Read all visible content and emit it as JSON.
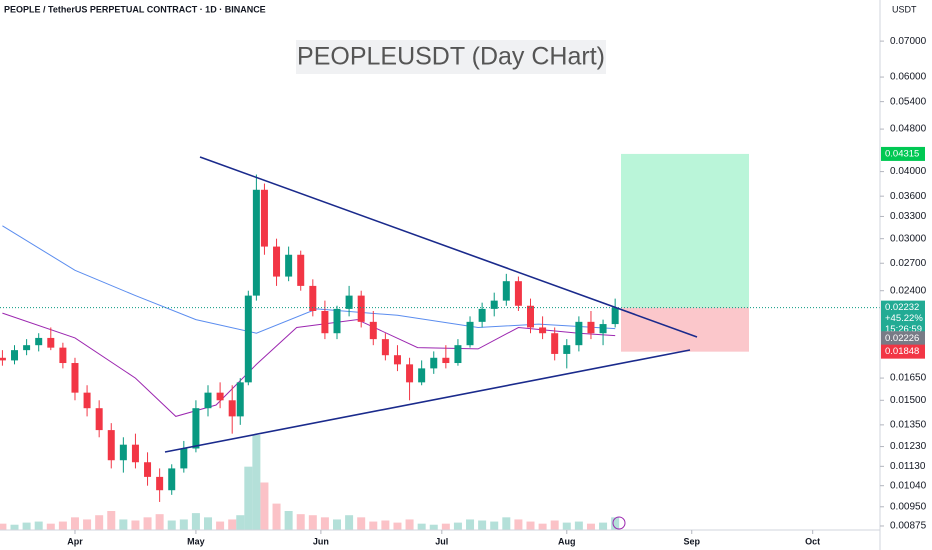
{
  "chart_data": {
    "type": "candlestick",
    "header": "PEOPLE / TetherUS PERPETUAL CONTRACT · 1D · BINANCE",
    "title": "PEOPLEUSDT (Day CHart)",
    "y_unit": "USDT",
    "log_scale": true,
    "grid": false,
    "up_color": "#089981",
    "down_color": "#f23645",
    "xlim": [
      -18.6,
      199.7
    ],
    "ylim": [
      0.0086,
      0.0835
    ],
    "xticks": [
      {
        "value": 0,
        "label": "Apr"
      },
      {
        "value": 30,
        "label": "May"
      },
      {
        "value": 61,
        "label": "Jun"
      },
      {
        "value": 91,
        "label": "Jul"
      },
      {
        "value": 122,
        "label": "Aug"
      },
      {
        "value": 153,
        "label": "Sep"
      },
      {
        "value": 183,
        "label": "Oct"
      }
    ],
    "yticks": [
      {
        "value": 0.07,
        "label": "0.07000"
      },
      {
        "value": 0.06,
        "label": "0.06000"
      },
      {
        "value": 0.054,
        "label": "0.05400"
      },
      {
        "value": 0.048,
        "label": "0.04800"
      },
      {
        "value": 0.04,
        "label": "0.04000"
      },
      {
        "value": 0.036,
        "label": "0.03600"
      },
      {
        "value": 0.033,
        "label": "0.03300"
      },
      {
        "value": 0.03,
        "label": "0.03000"
      },
      {
        "value": 0.027,
        "label": "0.02700"
      },
      {
        "value": 0.024,
        "label": "0.02400"
      },
      {
        "value": 0.0165,
        "label": "0.01650"
      },
      {
        "value": 0.015,
        "label": "0.01500"
      },
      {
        "value": 0.0135,
        "label": "0.01350"
      },
      {
        "value": 0.0123,
        "label": "0.01230"
      },
      {
        "value": 0.0113,
        "label": "0.01130"
      },
      {
        "value": 0.0104,
        "label": "0.01040"
      },
      {
        "value": 0.0095,
        "label": "0.00950"
      },
      {
        "value": 0.00875,
        "label": "0.00875"
      }
    ],
    "x": [
      -18,
      -15,
      -12,
      -9,
      -6,
      -3,
      0,
      3,
      6,
      9,
      12,
      15,
      18,
      21,
      24,
      27,
      30,
      33,
      36,
      39,
      41,
      43,
      45,
      47,
      50,
      53,
      56,
      59,
      62,
      65,
      68,
      71,
      74,
      77,
      80,
      83,
      86,
      89,
      92,
      95,
      98,
      101,
      104,
      107,
      110,
      113,
      116,
      119,
      122,
      125,
      128,
      131,
      134
    ],
    "open": [
      0.018,
      0.0178,
      0.0186,
      0.019,
      0.0196,
      0.0188,
      0.0176,
      0.0155,
      0.0145,
      0.0132,
      0.0116,
      0.0124,
      0.0115,
      0.0108,
      0.0102,
      0.0112,
      0.0122,
      0.0145,
      0.0155,
      0.015,
      0.014,
      0.0162,
      0.0235,
      0.037,
      0.029,
      0.0255,
      0.028,
      0.0245,
      0.022,
      0.02,
      0.0222,
      0.0235,
      0.021,
      0.0195,
      0.0182,
      0.0175,
      0.0162,
      0.0172,
      0.018,
      0.0176,
      0.019,
      0.021,
      0.0222,
      0.023,
      0.025,
      0.0225,
      0.0205,
      0.02,
      0.0183,
      0.019,
      0.021,
      0.02,
      0.0208
    ],
    "high": [
      0.0186,
      0.019,
      0.0195,
      0.02,
      0.0205,
      0.0192,
      0.018,
      0.016,
      0.015,
      0.0136,
      0.0128,
      0.013,
      0.012,
      0.0112,
      0.0114,
      0.0126,
      0.015,
      0.016,
      0.0162,
      0.016,
      0.0165,
      0.024,
      0.0395,
      0.038,
      0.03,
      0.029,
      0.0285,
      0.0252,
      0.023,
      0.0225,
      0.0245,
      0.024,
      0.022,
      0.02,
      0.019,
      0.018,
      0.0178,
      0.0185,
      0.019,
      0.0195,
      0.0215,
      0.0228,
      0.0238,
      0.0258,
      0.0255,
      0.0232,
      0.0215,
      0.0205,
      0.0195,
      0.0215,
      0.022,
      0.0212,
      0.0232
    ],
    "low": [
      0.0174,
      0.0175,
      0.0182,
      0.0185,
      0.0186,
      0.0172,
      0.015,
      0.014,
      0.0128,
      0.0112,
      0.011,
      0.0112,
      0.0104,
      0.0097,
      0.01,
      0.011,
      0.012,
      0.014,
      0.0145,
      0.013,
      0.0135,
      0.016,
      0.023,
      0.028,
      0.0245,
      0.025,
      0.024,
      0.0215,
      0.0195,
      0.0195,
      0.0215,
      0.0205,
      0.019,
      0.0178,
      0.017,
      0.015,
      0.016,
      0.0168,
      0.0172,
      0.0174,
      0.0188,
      0.0205,
      0.0215,
      0.0225,
      0.022,
      0.02,
      0.0195,
      0.0178,
      0.0172,
      0.0185,
      0.0195,
      0.019,
      0.0205
    ],
    "close": [
      0.0178,
      0.0186,
      0.019,
      0.0196,
      0.0188,
      0.0176,
      0.0155,
      0.0145,
      0.0132,
      0.0116,
      0.0124,
      0.0115,
      0.0108,
      0.0102,
      0.0112,
      0.0122,
      0.0145,
      0.0155,
      0.015,
      0.014,
      0.0162,
      0.0235,
      0.037,
      0.029,
      0.0255,
      0.028,
      0.0245,
      0.022,
      0.02,
      0.0222,
      0.0235,
      0.021,
      0.0195,
      0.0182,
      0.0175,
      0.0162,
      0.0172,
      0.018,
      0.0176,
      0.019,
      0.021,
      0.0222,
      0.023,
      0.025,
      0.0225,
      0.0205,
      0.02,
      0.0183,
      0.019,
      0.021,
      0.02,
      0.0208,
      0.02232
    ],
    "volume": [
      6,
      5,
      7,
      8,
      6,
      8,
      12,
      10,
      14,
      18,
      10,
      9,
      12,
      15,
      9,
      10,
      16,
      12,
      8,
      10,
      14,
      60,
      90,
      45,
      25,
      18,
      15,
      14,
      12,
      10,
      14,
      12,
      8,
      9,
      7,
      10,
      6,
      5,
      6,
      7,
      10,
      9,
      8,
      12,
      10,
      8,
      6,
      9,
      7,
      8,
      6,
      7,
      12
    ],
    "moving_averages": [
      {
        "color": "#5b8def",
        "x": [
          -18,
          0,
          15,
          30,
          45,
          60,
          80,
          100,
          115,
          134
        ],
        "values": [
          0.0317,
          0.0262,
          0.0235,
          0.0212,
          0.02,
          0.0222,
          0.0216,
          0.0205,
          0.0208,
          0.0204
        ]
      },
      {
        "color": "#9c27b0",
        "x": [
          -18,
          0,
          15,
          25,
          35,
          45,
          55,
          70,
          85,
          100,
          110,
          125,
          134
        ],
        "values": [
          0.0218,
          0.0196,
          0.0165,
          0.014,
          0.0147,
          0.0175,
          0.0205,
          0.0212,
          0.0188,
          0.0187,
          0.0205,
          0.02,
          0.0198
        ]
      }
    ],
    "position": {
      "target": 0.04315,
      "entry": 0.02232,
      "stop": 0.01848
    },
    "last_price": {
      "value": 0.02232,
      "change": "+45.22%",
      "countdown": "15:26:59"
    },
    "mark_price": 0.02226
  }
}
